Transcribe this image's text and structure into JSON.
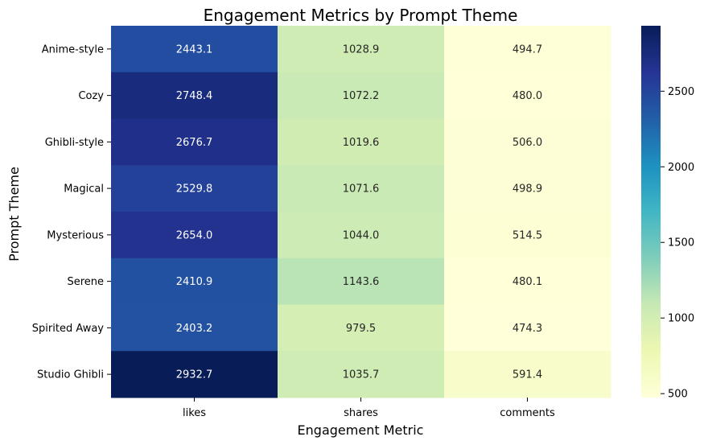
{
  "chart_data": {
    "type": "heatmap",
    "title": "Engagement Metrics by Prompt Theme",
    "xlabel": "Engagement Metric",
    "ylabel": "Prompt Theme",
    "x_categories": [
      "likes",
      "shares",
      "comments"
    ],
    "y_categories": [
      "Anime-style",
      "Cozy",
      "Ghibli-style",
      "Magical",
      "Mysterious",
      "Serene",
      "Spirited Away",
      "Studio Ghibli"
    ],
    "values": [
      [
        2443.1,
        1028.9,
        494.7
      ],
      [
        2748.4,
        1072.2,
        480.0
      ],
      [
        2676.7,
        1019.6,
        506.0
      ],
      [
        2529.8,
        1071.6,
        498.9
      ],
      [
        2654.0,
        1044.0,
        514.5
      ],
      [
        2410.9,
        1143.6,
        480.1
      ],
      [
        2403.2,
        979.5,
        474.3
      ],
      [
        2932.7,
        1035.7,
        591.4
      ]
    ],
    "value_format": "0.1f",
    "colormap": "YlGnBu",
    "colormap_stops": [
      "#ffffd9",
      "#edf8b1",
      "#c7e9b4",
      "#7fcdbb",
      "#41b6c4",
      "#1d91c0",
      "#225ea8",
      "#253494",
      "#081d58"
    ],
    "colorbar": {
      "min": 474.3,
      "max": 2932.7,
      "ticks": [
        500,
        1000,
        1500,
        2000,
        2500
      ]
    }
  }
}
